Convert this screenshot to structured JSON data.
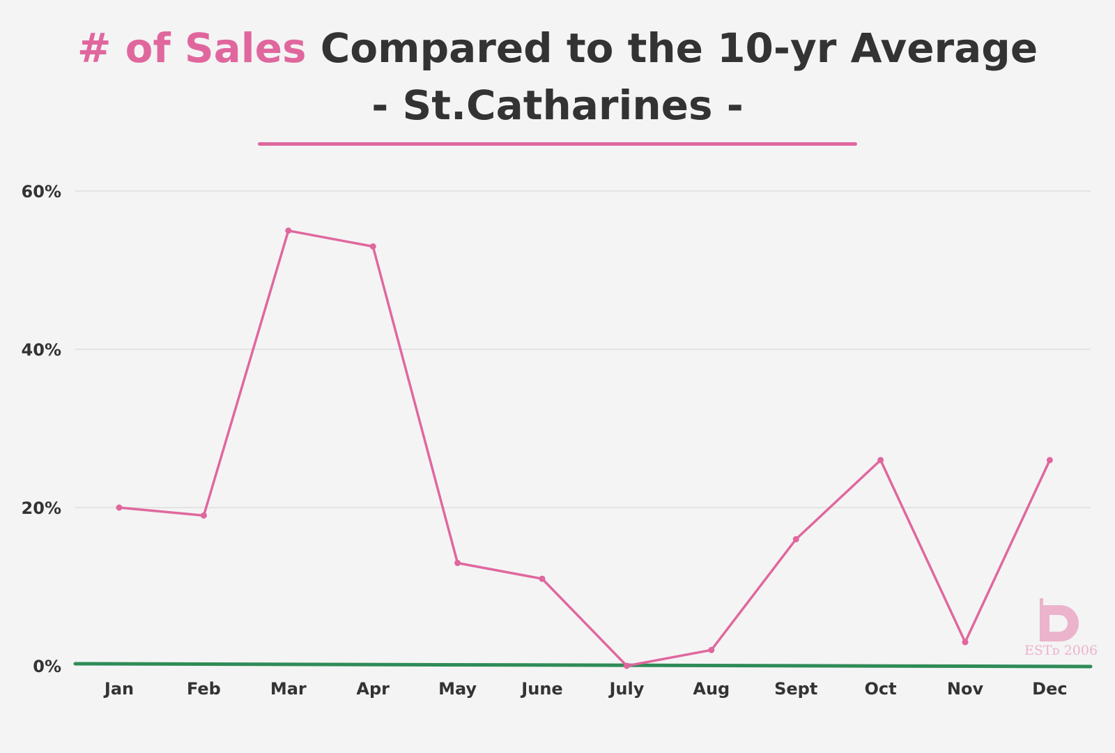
{
  "title": {
    "accent": "# of Sales",
    "rest": " Compared to the 10-yr Average",
    "subtitle": "- St.Catharines -"
  },
  "colors": {
    "accent": "#e0679e",
    "baseline": "#2e8b57",
    "grid": "#dddddd",
    "text": "#333333",
    "background": "#f4f4f4"
  },
  "logo": {
    "text": "ESTᴅ 2006"
  },
  "chart_data": {
    "type": "line",
    "categories": [
      "Jan",
      "Feb",
      "Mar",
      "Apr",
      "May",
      "June",
      "July",
      "Aug",
      "Sept",
      "Oct",
      "Nov",
      "Dec"
    ],
    "series": [
      {
        "values": [
          20,
          19,
          55,
          53,
          13,
          11,
          0,
          2,
          16,
          26,
          3,
          26
        ]
      }
    ],
    "baseline": 0,
    "ylim": [
      0,
      60
    ],
    "yticks": [
      0,
      20,
      40,
      60
    ],
    "ytick_suffix": "%",
    "grid": true,
    "xlabel": "",
    "ylabel": ""
  }
}
